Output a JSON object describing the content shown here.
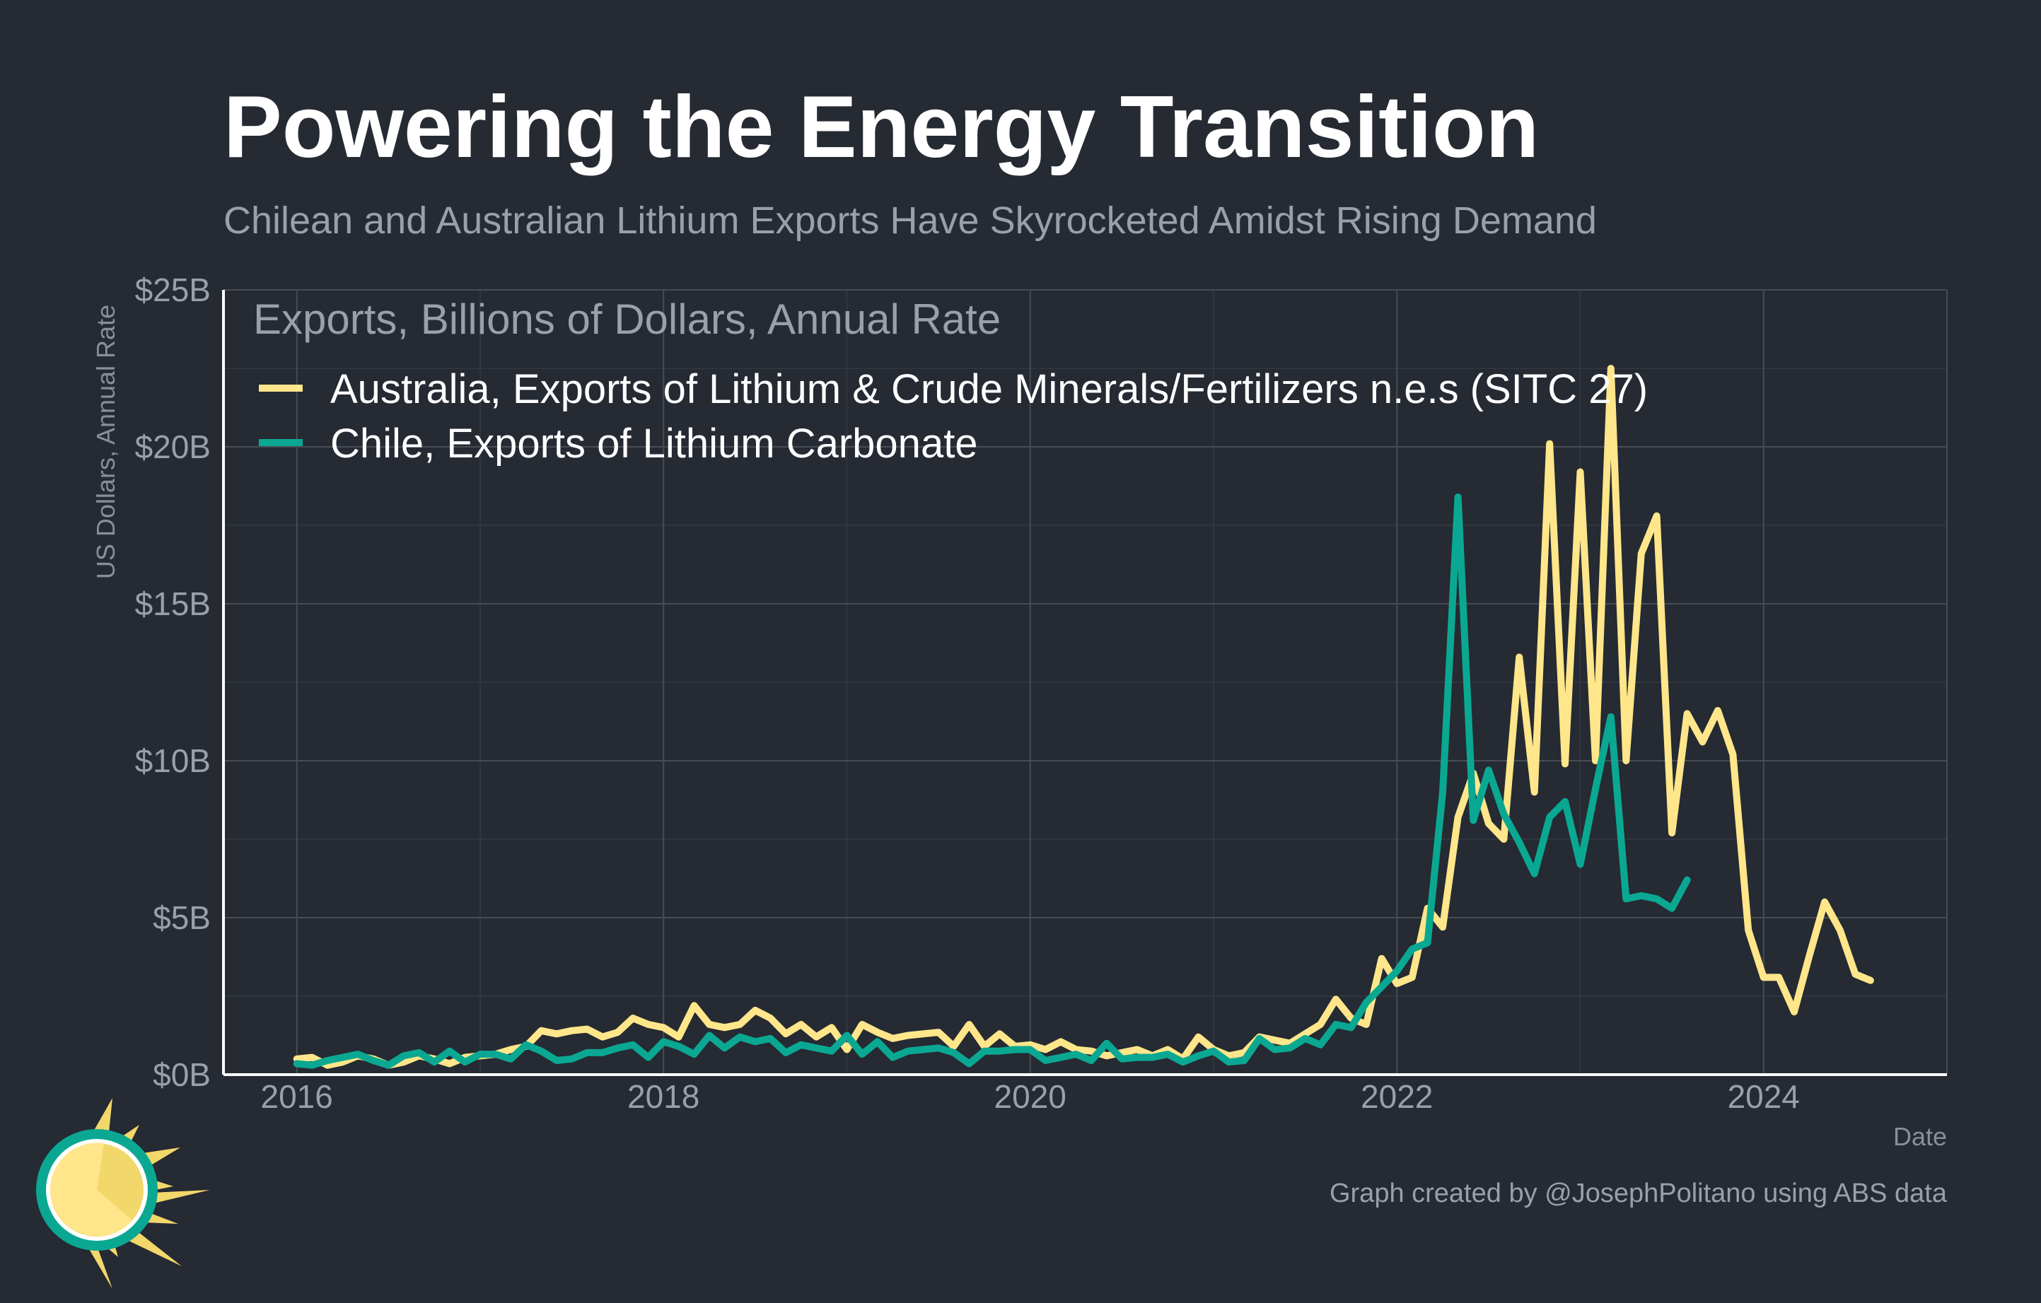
{
  "title": "Powering the Energy Transition",
  "subtitle": "Chilean and Australian Lithium Exports Have Skyrocketed Amidst Rising Demand",
  "credit": "Graph created by @JosephPolitano using ABS data",
  "logo_icon": "sun-icon",
  "chart_data": {
    "type": "line",
    "xlabel": "Date",
    "ylabel": "US Dollars, Annual Rate",
    "legend_title": "Exports, Billions of Dollars, Annual Rate",
    "legend_position": "top-left",
    "xlim": [
      2015.6,
      2025.0
    ],
    "ylim": [
      0,
      25
    ],
    "x_ticks": [
      2016,
      2018,
      2020,
      2022,
      2024
    ],
    "x_tick_labels": [
      "2016",
      "2018",
      "2020",
      "2022",
      "2024"
    ],
    "y_ticks": [
      0,
      5,
      10,
      15,
      20,
      25
    ],
    "y_tick_labels": [
      "$0B",
      "$5B",
      "$10B",
      "$15B",
      "$20B",
      "$25B"
    ],
    "grid": true,
    "series": [
      {
        "name": "Australia, Exports of Lithium & Crude Minerals/Fertilizers n.e.s (SITC 27)",
        "color": "#ffe68a",
        "x": [
          2016.0,
          2016.083,
          2016.167,
          2016.25,
          2016.333,
          2016.417,
          2016.5,
          2016.583,
          2016.667,
          2016.75,
          2016.833,
          2016.917,
          2017.0,
          2017.083,
          2017.167,
          2017.25,
          2017.333,
          2017.417,
          2017.5,
          2017.583,
          2017.667,
          2017.75,
          2017.833,
          2017.917,
          2018.0,
          2018.083,
          2018.167,
          2018.25,
          2018.333,
          2018.417,
          2018.5,
          2018.583,
          2018.667,
          2018.75,
          2018.833,
          2018.917,
          2019.0,
          2019.083,
          2019.167,
          2019.25,
          2019.333,
          2019.417,
          2019.5,
          2019.583,
          2019.667,
          2019.75,
          2019.833,
          2019.917,
          2020.0,
          2020.083,
          2020.167,
          2020.25,
          2020.333,
          2020.417,
          2020.5,
          2020.583,
          2020.667,
          2020.75,
          2020.833,
          2020.917,
          2021.0,
          2021.083,
          2021.167,
          2021.25,
          2021.333,
          2021.417,
          2021.5,
          2021.583,
          2021.667,
          2021.75,
          2021.833,
          2021.917,
          2022.0,
          2022.083,
          2022.167,
          2022.25,
          2022.333,
          2022.417,
          2022.5,
          2022.583,
          2022.667,
          2022.75,
          2022.833,
          2022.917,
          2023.0,
          2023.083,
          2023.167,
          2023.25,
          2023.333,
          2023.417,
          2023.5,
          2023.583,
          2023.667,
          2023.75,
          2023.833,
          2023.917,
          2024.0,
          2024.083,
          2024.167,
          2024.25,
          2024.333,
          2024.417,
          2024.5,
          2024.583
        ],
        "y": [
          0.5,
          0.55,
          0.3,
          0.4,
          0.6,
          0.5,
          0.3,
          0.4,
          0.6,
          0.5,
          0.35,
          0.55,
          0.6,
          0.65,
          0.8,
          0.9,
          1.4,
          1.3,
          1.4,
          1.45,
          1.2,
          1.35,
          1.8,
          1.6,
          1.5,
          1.2,
          2.2,
          1.6,
          1.5,
          1.6,
          2.05,
          1.8,
          1.3,
          1.6,
          1.2,
          1.5,
          0.8,
          1.6,
          1.35,
          1.15,
          1.25,
          1.3,
          1.35,
          0.9,
          1.6,
          0.9,
          1.3,
          0.9,
          0.95,
          0.8,
          1.05,
          0.8,
          0.75,
          0.6,
          0.7,
          0.8,
          0.6,
          0.8,
          0.5,
          1.2,
          0.8,
          0.6,
          0.7,
          1.2,
          1.1,
          1.0,
          1.3,
          1.6,
          2.4,
          1.8,
          1.6,
          3.7,
          2.9,
          3.1,
          5.3,
          4.7,
          8.2,
          9.6,
          8.0,
          7.5,
          13.3,
          9.0,
          20.1,
          9.9,
          19.2,
          10.0,
          22.5,
          10.0,
          16.6,
          17.8,
          7.7,
          11.5,
          10.6,
          11.6,
          10.2,
          4.6,
          3.1,
          3.1,
          2.0,
          3.8,
          5.5,
          4.6,
          3.2,
          3.0
        ]
      },
      {
        "name": "Chile, Exports of Lithium Carbonate",
        "color": "#0aa892",
        "x": [
          2016.0,
          2016.083,
          2016.167,
          2016.25,
          2016.333,
          2016.417,
          2016.5,
          2016.583,
          2016.667,
          2016.75,
          2016.833,
          2016.917,
          2017.0,
          2017.083,
          2017.167,
          2017.25,
          2017.333,
          2017.417,
          2017.5,
          2017.583,
          2017.667,
          2017.75,
          2017.833,
          2017.917,
          2018.0,
          2018.083,
          2018.167,
          2018.25,
          2018.333,
          2018.417,
          2018.5,
          2018.583,
          2018.667,
          2018.75,
          2018.833,
          2018.917,
          2019.0,
          2019.083,
          2019.167,
          2019.25,
          2019.333,
          2019.417,
          2019.5,
          2019.583,
          2019.667,
          2019.75,
          2019.833,
          2019.917,
          2020.0,
          2020.083,
          2020.167,
          2020.25,
          2020.333,
          2020.417,
          2020.5,
          2020.583,
          2020.667,
          2020.75,
          2020.833,
          2020.917,
          2021.0,
          2021.083,
          2021.167,
          2021.25,
          2021.333,
          2021.417,
          2021.5,
          2021.583,
          2021.667,
          2021.75,
          2021.833,
          2021.917,
          2022.0,
          2022.083,
          2022.167,
          2022.25,
          2022.333,
          2022.417,
          2022.5,
          2022.583,
          2022.667,
          2022.75,
          2022.833,
          2022.917,
          2023.0,
          2023.083,
          2023.167,
          2023.25,
          2023.333,
          2023.417,
          2023.5,
          2023.583
        ],
        "y": [
          0.35,
          0.3,
          0.45,
          0.55,
          0.65,
          0.45,
          0.3,
          0.6,
          0.7,
          0.4,
          0.75,
          0.4,
          0.65,
          0.65,
          0.5,
          0.95,
          0.75,
          0.45,
          0.5,
          0.7,
          0.7,
          0.85,
          0.95,
          0.55,
          1.05,
          0.9,
          0.65,
          1.25,
          0.85,
          1.2,
          1.05,
          1.15,
          0.7,
          0.95,
          0.85,
          0.75,
          1.25,
          0.65,
          1.05,
          0.55,
          0.75,
          0.8,
          0.85,
          0.7,
          0.35,
          0.75,
          0.75,
          0.8,
          0.8,
          0.45,
          0.55,
          0.65,
          0.45,
          1.0,
          0.5,
          0.55,
          0.55,
          0.65,
          0.4,
          0.6,
          0.75,
          0.4,
          0.45,
          1.15,
          0.8,
          0.85,
          1.15,
          0.95,
          1.6,
          1.5,
          2.3,
          2.8,
          3.3,
          4.0,
          4.2,
          9.0,
          18.4,
          8.1,
          9.7,
          8.3,
          7.4,
          6.4,
          8.2,
          8.7,
          6.7,
          9.1,
          11.4,
          5.6,
          5.7,
          5.6,
          5.3,
          6.2
        ]
      }
    ]
  }
}
